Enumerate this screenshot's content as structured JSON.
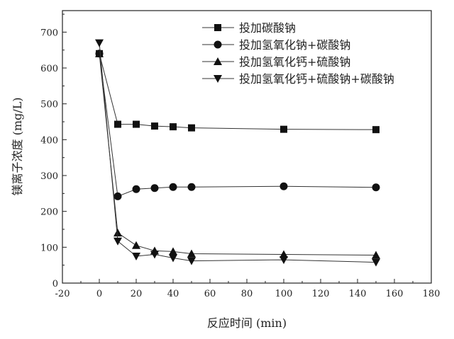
{
  "chart_data": {
    "type": "line",
    "title": "",
    "xlabel": "反应时间 (min)",
    "ylabel": "镁离子浓度 (mg/L)",
    "xlim": [
      -20,
      180
    ],
    "ylim": [
      0,
      760
    ],
    "xticks": [
      -20,
      0,
      20,
      40,
      60,
      80,
      100,
      120,
      140,
      160,
      180
    ],
    "yticks": [
      0,
      100,
      200,
      300,
      400,
      500,
      600,
      700
    ],
    "grid": false,
    "legend_position": "top-right",
    "x": [
      0,
      10,
      20,
      30,
      40,
      50,
      100,
      150
    ],
    "series": [
      {
        "name": "投加碳酸钠",
        "marker": "square",
        "values": [
          640,
          443,
          443,
          438,
          436,
          433,
          429,
          428
        ]
      },
      {
        "name": "投加氢氧化钠+碳酸钠",
        "marker": "circle",
        "values": [
          640,
          242,
          262,
          265,
          268,
          268,
          270,
          267
        ]
      },
      {
        "name": "投加氢氧化钙+硫酸钠",
        "marker": "triangle-up",
        "values": [
          640,
          140,
          105,
          90,
          88,
          82,
          80,
          78
        ]
      },
      {
        "name": "投加氢氧化钙+硫酸钠+碳酸钠",
        "marker": "triangle-down",
        "values": [
          670,
          117,
          75,
          80,
          70,
          62,
          65,
          58
        ]
      }
    ]
  }
}
